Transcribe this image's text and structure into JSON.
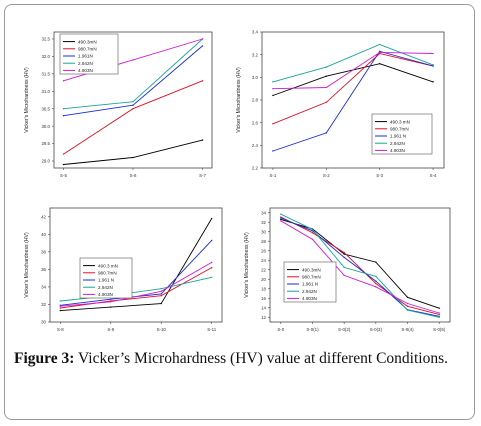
{
  "caption": {
    "label": "Figure 3:",
    "text": "Vicker’s Microhardness (HV) value at different Conditions."
  },
  "legend_labels": [
    "490.3mN",
    "980.7mN",
    "1.961 N",
    "2.942N",
    "4.903N"
  ],
  "colors": {
    "s1": "#000000",
    "s2": "#e0102a",
    "s3": "#1a2bd6",
    "s4": "#1aa39a",
    "s5": "#d21ad6"
  },
  "chart_data": [
    {
      "type": "line",
      "title": "",
      "ylabel": "Vicker's Microhardness (HV)",
      "xlabel": "",
      "categories": [
        "S-5",
        "S-6",
        "S-7"
      ],
      "yticks": [
        "29.0",
        "29.5",
        "30.0",
        "30.5",
        "31.0",
        "31.5",
        "32.0",
        "32.5"
      ],
      "ylim": [
        28.8,
        32.7
      ],
      "legend": [
        "490.3mN",
        "980.7mN",
        "1.961N",
        "2.942N",
        "4.903N"
      ],
      "legend_position": "top-left",
      "series": [
        {
          "name": "490.3mN",
          "values": [
            28.9,
            29.1,
            29.6
          ]
        },
        {
          "name": "980.7mN",
          "values": [
            29.2,
            30.5,
            31.3
          ]
        },
        {
          "name": "1.961N",
          "values": [
            30.3,
            30.6,
            32.3
          ]
        },
        {
          "name": "2.942N",
          "values": [
            30.5,
            30.7,
            32.5
          ]
        },
        {
          "name": "4.903N",
          "values": [
            31.3,
            31.9,
            32.5
          ]
        }
      ]
    },
    {
      "type": "line",
      "title": "",
      "ylabel": "Vicker's Microhardness (HV)",
      "xlabel": "",
      "categories": [
        "S-1",
        "S-2",
        "S-3",
        "S-4"
      ],
      "yticks": [
        "2.2",
        "2.4",
        "2.6",
        "2.8",
        "3.0",
        "3.2",
        "3.4"
      ],
      "ylim": [
        2.2,
        3.4
      ],
      "legend": [
        "490.3 mN",
        "980.7mN",
        "1.961 N",
        "2.942N",
        "4.903N"
      ],
      "legend_position": "bottom-right",
      "series": [
        {
          "name": "490.3 mN",
          "values": [
            2.84,
            3.01,
            3.12,
            2.96
          ]
        },
        {
          "name": "980.7mN",
          "values": [
            2.59,
            2.78,
            3.21,
            3.1
          ]
        },
        {
          "name": "1.961 N",
          "values": [
            2.35,
            2.51,
            3.23,
            3.1
          ]
        },
        {
          "name": "2.942N",
          "values": [
            2.96,
            3.09,
            3.29,
            3.11
          ]
        },
        {
          "name": "4.903N",
          "values": [
            2.9,
            2.91,
            3.22,
            3.21
          ]
        }
      ]
    },
    {
      "type": "line",
      "title": "",
      "ylabel": "Vicker's Microhardness (HV)",
      "xlabel": "",
      "categories": [
        "S-8",
        "S-9",
        "S-10",
        "S-11"
      ],
      "yticks": [
        "30",
        "32",
        "34",
        "36",
        "38",
        "40",
        "42"
      ],
      "ylim": [
        30,
        43
      ],
      "legend": [
        "490.3 mN",
        "980.7mN",
        "1.961 N",
        "2.942N",
        "4.903N"
      ],
      "legend_position": "center-left",
      "series": [
        {
          "name": "490.3 mN",
          "values": [
            31.3,
            31.7,
            32.1,
            41.8
          ]
        },
        {
          "name": "980.7mN",
          "values": [
            31.6,
            32.4,
            33.0,
            36.2
          ]
        },
        {
          "name": "1.961 N",
          "values": [
            31.9,
            32.6,
            33.2,
            39.3
          ]
        },
        {
          "name": "2.942N",
          "values": [
            32.4,
            33.0,
            33.8,
            35.1
          ]
        },
        {
          "name": "4.903N",
          "values": [
            31.8,
            32.3,
            33.5,
            36.8
          ]
        }
      ]
    },
    {
      "type": "line",
      "title": "",
      "ylabel": "Vicker's Microhardness (HV)",
      "xlabel": "",
      "categories": [
        "S-0",
        "S-0(1)",
        "S-0(2)",
        "S-0(3)",
        "S-0(4)",
        "S-0(5)"
      ],
      "yticks": [
        "12",
        "14",
        "16",
        "18",
        "20",
        "22",
        "24",
        "26",
        "28",
        "30",
        "32",
        "34"
      ],
      "ylim": [
        11,
        35
      ],
      "legend": [
        "490.3mN",
        "980.7mN",
        "1.961 N",
        "2.942N",
        "4.903N"
      ],
      "legend_position": "bottom-left",
      "series": [
        {
          "name": "490.3mN",
          "values": [
            32.6,
            30.6,
            25.3,
            23.6,
            16.2,
            13.9
          ]
        },
        {
          "name": "980.7mN",
          "values": [
            33.1,
            29.8,
            25.6,
            19.1,
            14.3,
            12.6
          ]
        },
        {
          "name": "1.961 N",
          "values": [
            32.9,
            30.2,
            24.6,
            19.6,
            13.6,
            12.2
          ]
        },
        {
          "name": "2.942N",
          "values": [
            33.7,
            30.5,
            22.5,
            20.6,
            13.5,
            12.0
          ]
        },
        {
          "name": "4.903N",
          "values": [
            32.3,
            28.4,
            20.8,
            18.4,
            14.9,
            12.9
          ]
        }
      ]
    }
  ]
}
